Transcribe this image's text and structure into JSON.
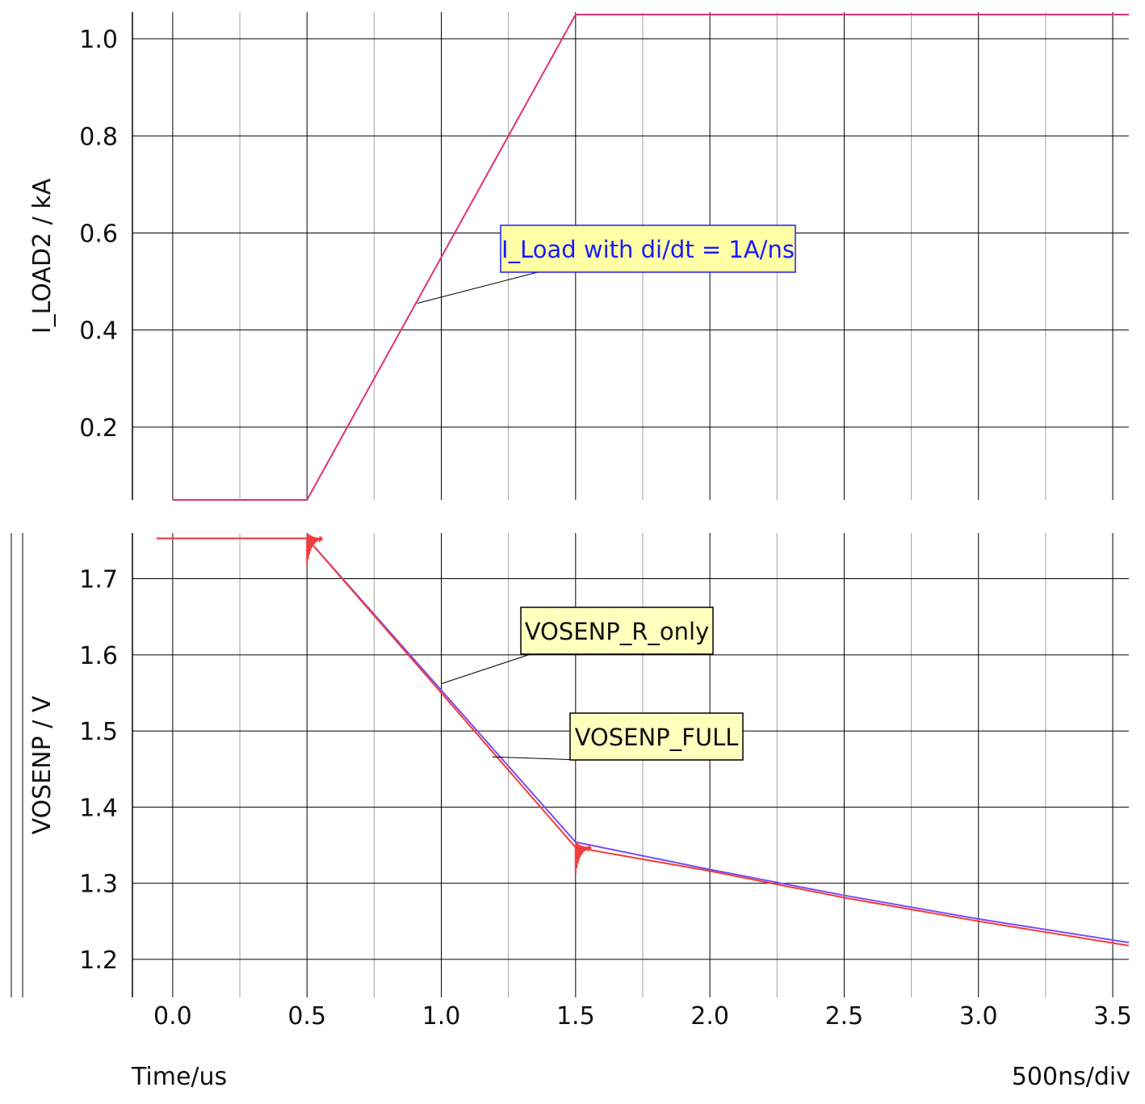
{
  "chart_data": [
    {
      "type": "line",
      "ylabel": "I_LOAD2 / kA",
      "xlim": [
        -0.15,
        3.56
      ],
      "ylim": [
        0.05,
        1.055
      ],
      "yticks": [
        "0.2",
        "0.4",
        "0.6",
        "0.8",
        "1.0"
      ],
      "ytick_values": [
        0.2,
        0.4,
        0.6,
        0.8,
        1.0
      ],
      "grid": true,
      "series": [
        {
          "name": "I_Load with di/dt = 1A/ns",
          "color": "#e0307a",
          "x": [
            0.0,
            0.5,
            1.5,
            3.56
          ],
          "y": [
            0.05,
            0.05,
            1.05,
            1.05
          ]
        }
      ],
      "annotations": [
        {
          "text": "I_Load with di/dt = 1A/ns",
          "x": 0.91,
          "y": 0.455,
          "style": "blue"
        }
      ]
    },
    {
      "type": "line",
      "ylabel": "VOSENP / V",
      "xlim": [
        -0.15,
        3.56
      ],
      "ylim": [
        1.15,
        1.76
      ],
      "yticks": [
        "1.2",
        "1.3",
        "1.4",
        "1.5",
        "1.6",
        "1.7"
      ],
      "ytick_values": [
        1.2,
        1.3,
        1.4,
        1.5,
        1.6,
        1.7
      ],
      "grid": true,
      "series": [
        {
          "name": "VOSENP_R_only",
          "color": "#7a4cf0",
          "x": [
            -0.06,
            0.5,
            1.5,
            2.0,
            2.5,
            3.0,
            3.56
          ],
          "y": [
            1.753,
            1.753,
            1.354,
            1.318,
            1.284,
            1.253,
            1.222
          ]
        },
        {
          "name": "VOSENP_FULL",
          "color": "#f03c3c",
          "x": [
            -0.06,
            0.5,
            1.5,
            2.0,
            2.5,
            3.0,
            3.56
          ],
          "y": [
            1.753,
            1.753,
            1.347,
            1.316,
            1.281,
            1.25,
            1.218
          ]
        }
      ],
      "annotations": [
        {
          "text": "VOSENP_R_only",
          "x": 1.0,
          "y": 1.562,
          "style": "yellow"
        },
        {
          "text": "VOSENP_FULL",
          "x": 1.19,
          "y": 1.466,
          "style": "yellow"
        }
      ]
    }
  ],
  "xaxis": {
    "label": "Time/us",
    "scale_label": "500ns/div",
    "ticks": [
      "0.0",
      "0.5",
      "1.0",
      "1.5",
      "2.0",
      "2.5",
      "3.0",
      "3.5"
    ],
    "tick_values": [
      0.0,
      0.5,
      1.0,
      1.5,
      2.0,
      2.5,
      3.0,
      3.5
    ]
  },
  "colors": {
    "grid_major": "#000000",
    "grid_minor": "#a0a0a0",
    "blue_label_text": "#1a1aff",
    "blue_label_bg": "#ffffa6",
    "yellow_label_bg": "#ffffbe"
  }
}
